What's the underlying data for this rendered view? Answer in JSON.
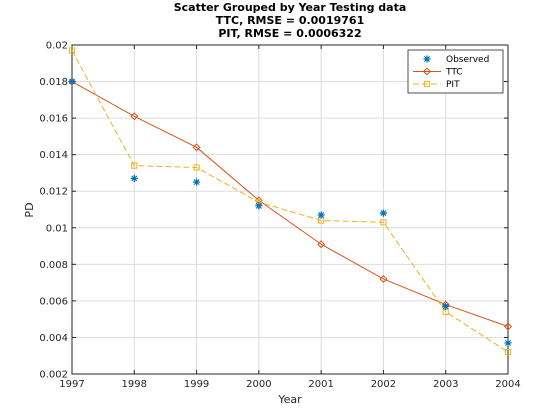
{
  "chart_data": {
    "type": "line",
    "title_lines": [
      "Scatter Grouped by Year Testing data",
      "TTC, RMSE = 0.0019761",
      "PIT, RMSE = 0.0006322"
    ],
    "xlabel": "Year",
    "ylabel": "PD",
    "xlim": [
      1997,
      2004
    ],
    "ylim": [
      0.002,
      0.02
    ],
    "x_ticks": [
      "1997",
      "1998",
      "1999",
      "2000",
      "2001",
      "2002",
      "2003",
      "2004"
    ],
    "y_ticks": [
      "0.002",
      "0.004",
      "0.006",
      "0.008",
      "0.01",
      "0.012",
      "0.014",
      "0.016",
      "0.018",
      "0.02"
    ],
    "grid": true,
    "legend_position": "top-right",
    "x": [
      1997,
      1998,
      1999,
      2000,
      2001,
      2002,
      2003,
      2004
    ],
    "series": [
      {
        "name": "Observed",
        "style": "markers",
        "marker": "asterisk",
        "color": "#0072BD",
        "values": [
          0.018,
          0.0127,
          0.0125,
          0.0112,
          0.0107,
          0.0108,
          0.0057,
          0.0037
        ]
      },
      {
        "name": "TTC",
        "style": "line",
        "marker": "diamond",
        "color": "#D95319",
        "values": [
          0.018,
          0.0161,
          0.0144,
          0.0115,
          0.0091,
          0.0072,
          0.0058,
          0.0046
        ]
      },
      {
        "name": "PIT",
        "style": "dashed",
        "marker": "square",
        "color": "#EDB120",
        "values": [
          0.0197,
          0.0134,
          0.0133,
          0.0114,
          0.0104,
          0.0103,
          0.0054,
          0.0032
        ]
      }
    ]
  }
}
